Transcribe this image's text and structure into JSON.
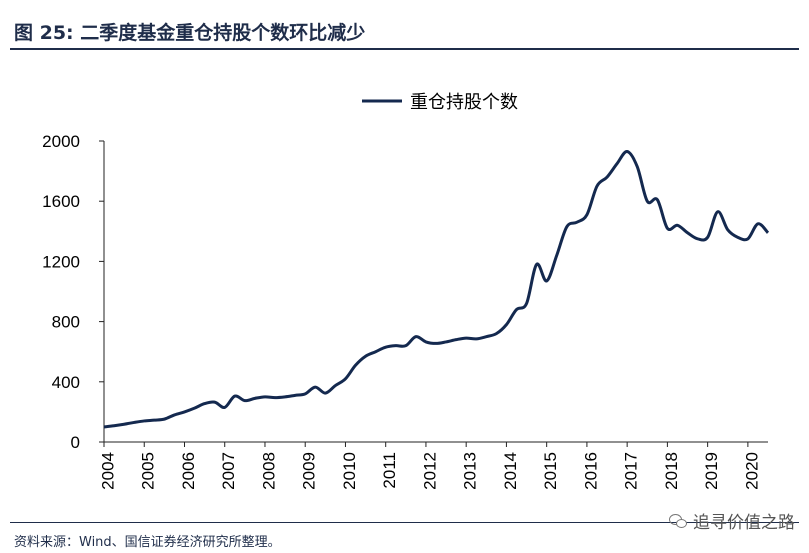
{
  "figure": {
    "title": "图 25:  二季度基金重仓持股个数环比减少",
    "source": "资料来源：Wind、国信证券经济研究所整理。",
    "watermark": "追寻价值之路",
    "watermark_icon": "wechat-icon"
  },
  "chart_data": {
    "type": "line",
    "title": "",
    "xlabel": "",
    "ylabel": "",
    "ylim": [
      0,
      2000
    ],
    "yticks": [
      "0",
      "400",
      "800",
      "1200",
      "1600",
      "2000"
    ],
    "xticks": [
      "2004",
      "2005",
      "2006",
      "2007",
      "2008",
      "2009",
      "2010",
      "2011",
      "2012",
      "2013",
      "2014",
      "2015",
      "2016",
      "2017",
      "2018",
      "2019",
      "2020"
    ],
    "xlim": [
      2004.0,
      2020.5
    ],
    "grid": false,
    "legend": "top-center",
    "line_color": "#14294f",
    "series": [
      {
        "name": "重仓持股个数",
        "x": [
          2004.0,
          2004.25,
          2004.5,
          2004.75,
          2005.0,
          2005.25,
          2005.5,
          2005.75,
          2006.0,
          2006.25,
          2006.5,
          2006.75,
          2007.0,
          2007.25,
          2007.5,
          2007.75,
          2008.0,
          2008.25,
          2008.5,
          2008.75,
          2009.0,
          2009.25,
          2009.5,
          2009.75,
          2010.0,
          2010.25,
          2010.5,
          2010.75,
          2011.0,
          2011.25,
          2011.5,
          2011.75,
          2012.0,
          2012.25,
          2012.5,
          2012.75,
          2013.0,
          2013.25,
          2013.5,
          2013.75,
          2014.0,
          2014.25,
          2014.5,
          2014.75,
          2015.0,
          2015.25,
          2015.5,
          2015.75,
          2016.0,
          2016.25,
          2016.5,
          2016.75,
          2017.0,
          2017.25,
          2017.5,
          2017.75,
          2018.0,
          2018.25,
          2018.5,
          2018.75,
          2019.0,
          2019.25,
          2019.5,
          2019.75,
          2020.0,
          2020.25,
          2020.5
        ],
        "values": [
          100,
          108,
          118,
          130,
          140,
          145,
          152,
          180,
          200,
          225,
          255,
          265,
          230,
          305,
          275,
          290,
          300,
          295,
          300,
          310,
          320,
          365,
          325,
          375,
          420,
          510,
          570,
          600,
          630,
          640,
          640,
          700,
          665,
          655,
          665,
          680,
          690,
          685,
          700,
          720,
          780,
          880,
          920,
          1180,
          1070,
          1240,
          1430,
          1460,
          1510,
          1700,
          1760,
          1850,
          1930,
          1830,
          1600,
          1610,
          1420,
          1440,
          1390,
          1350,
          1360,
          1530,
          1410,
          1360,
          1350,
          1450,
          1390
        ]
      }
    ]
  }
}
